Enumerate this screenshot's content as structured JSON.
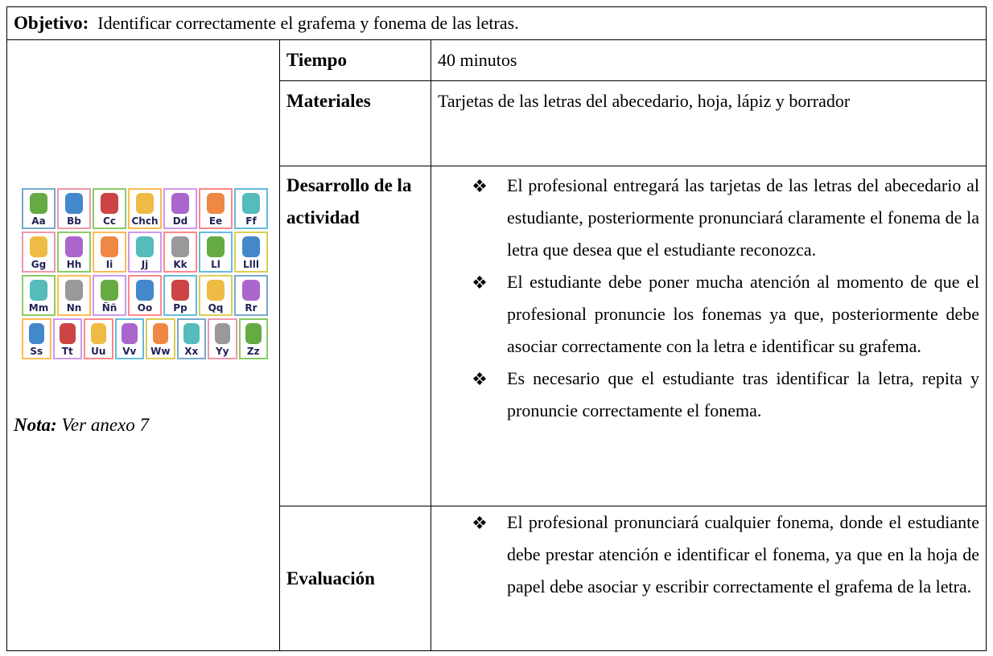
{
  "objective": {
    "label": "Objetivo:",
    "text": "Identificar correctamente el grafema y fonema de las letras."
  },
  "image": {
    "cards": [
      [
        "Aa",
        "Bb",
        "Cc",
        "Chch",
        "Dd",
        "Ee",
        "Ff"
      ],
      [
        "Gg",
        "Hh",
        "Ii",
        "Jj",
        "Kk",
        "Ll",
        "Llll"
      ],
      [
        "Mm",
        "Nn",
        "Ññ",
        "Oo",
        "Pp",
        "Qq",
        "Rr"
      ],
      [
        "Ss",
        "Tt",
        "Uu",
        "Vv",
        "Ww",
        "Xx",
        "Yy",
        "Zz"
      ]
    ]
  },
  "note": {
    "label": "Nota:",
    "text": "Ver anexo 7"
  },
  "rows": [
    {
      "label": "Tiempo",
      "text": "40 minutos"
    },
    {
      "label": "Materiales",
      "text": "Tarjetas de las letras del abecedario, hoja, lápiz y borrador"
    },
    {
      "label": "Desarrollo de la actividad",
      "bullets": [
        "El profesional entregará las tarjetas de las letras del abecedario al estudiante, posteriormente pronunciará claramente el fonema de la letra que desea que el estudiante reconozca.",
        "El estudiante debe poner mucha atención al momento de que el profesional pronuncie los fonemas ya que, posteriormente debe asociar correctamente con la letra e identificar su grafema.",
        "Es necesario que el estudiante tras identificar la letra, repita y pronuncie correctamente el fonema."
      ]
    },
    {
      "label": "Evaluación",
      "bullets": [
        "El profesional pronunciará cualquier fonema, donde el estudiante debe prestar atención e identificar el fonema, ya que en la hoja de papel debe asociar y escribir correctamente el grafema de la letra."
      ]
    }
  ]
}
